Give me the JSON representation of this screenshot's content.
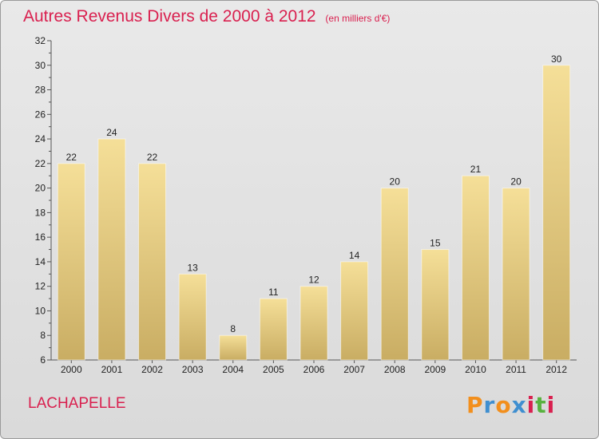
{
  "chart_data": {
    "type": "bar",
    "title": "Autres Revenus Divers de 2000 à 2012",
    "subtitle": "(en milliers d'€)",
    "categories": [
      "2000",
      "2001",
      "2002",
      "2003",
      "2004",
      "2005",
      "2006",
      "2007",
      "2008",
      "2009",
      "2010",
      "2011",
      "2012"
    ],
    "values": [
      22,
      24,
      22,
      13,
      8,
      11,
      12,
      14,
      20,
      15,
      21,
      20,
      30
    ],
    "ylim": [
      6,
      32
    ],
    "yticks": [
      6,
      8,
      10,
      12,
      14,
      16,
      18,
      20,
      22,
      24,
      26,
      28,
      30,
      32
    ],
    "xlabel": "",
    "ylabel": "",
    "grid": false,
    "data_labels": true,
    "bar_color_top": "#f5df98",
    "bar_color_bottom": "#c9ad63"
  },
  "footer": {
    "place": "LACHAPELLE",
    "brand_letters": [
      "P",
      "r",
      "o",
      "x",
      "i",
      "t",
      "i"
    ],
    "brand_colors": [
      "#f28f1d",
      "#3f8fd0",
      "#f28f1d",
      "#3f8fd0",
      "#d9204f",
      "#58b23f",
      "#d9204f"
    ]
  }
}
